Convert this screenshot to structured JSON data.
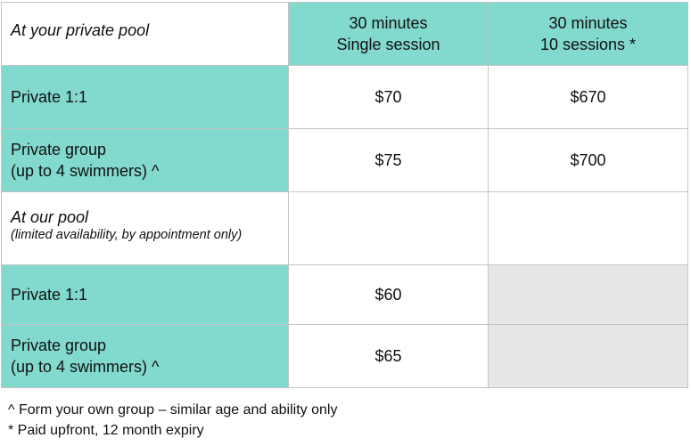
{
  "table": {
    "corner_header": "At your private pool",
    "columns": {
      "single_line1": "30 minutes",
      "single_line2": "Single session",
      "pack_line1": "30 minutes",
      "pack_line2": "10 sessions *"
    },
    "row_private_pool_1to1": {
      "label": "Private 1:1",
      "single_price": "$70",
      "pack_price": "$670"
    },
    "row_private_pool_group": {
      "label_line1": "Private group",
      "label_line2": "(up to 4 swimmers) ^",
      "single_price": "$75",
      "pack_price": "$700"
    },
    "section_our_pool": {
      "title": "At our pool",
      "subtitle": "(limited availability, by appointment only)"
    },
    "row_our_pool_1to1": {
      "label": "Private 1:1",
      "single_price": "$60"
    },
    "row_our_pool_group": {
      "label_line1": "Private group",
      "label_line2": "(up to 4 swimmers) ^",
      "single_price": "$65"
    }
  },
  "footnotes": {
    "group_note": "^ Form your own group – similar age and ability only",
    "payment_note": "* Paid upfront, 12 month expiry"
  },
  "colors": {
    "teal": "#82D9CE",
    "disabled_gray": "#E6E6E6",
    "border_gray": "#C4C4C4"
  }
}
